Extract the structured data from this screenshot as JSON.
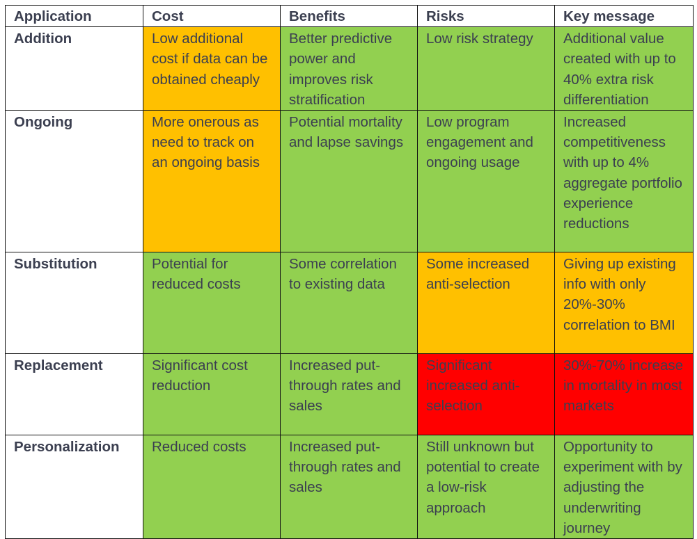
{
  "colors": {
    "green": "#92d050",
    "amber": "#ffc000",
    "red": "#ff0000",
    "text": "#3b3f50",
    "border": "#111111"
  },
  "table": {
    "headers": [
      "Application",
      "Cost",
      "Benefits",
      "Risks",
      "Key message"
    ],
    "rows": [
      {
        "application": "Addition",
        "cost": {
          "text": "Low additional cost if data can be obtained cheaply",
          "rating": "amber"
        },
        "benefits": {
          "text": "Better predictive power and improves risk stratification",
          "rating": "green"
        },
        "risks": {
          "text": "Low risk strategy",
          "rating": "green"
        },
        "key_message": {
          "text": "Additional value created with up to 40% extra risk differentiation",
          "rating": "green"
        }
      },
      {
        "application": "Ongoing",
        "cost": {
          "text": "More onerous as need to track on an ongoing basis",
          "rating": "amber"
        },
        "benefits": {
          "text": "Potential mortality and lapse savings",
          "rating": "green"
        },
        "risks": {
          "text": "Low program engagement and ongoing usage",
          "rating": "green"
        },
        "key_message": {
          "text": "Increased competitiveness with up to 4% aggregate portfolio experience reductions",
          "rating": "green"
        }
      },
      {
        "application": "Substitution",
        "cost": {
          "text": "Potential for reduced costs",
          "rating": "green"
        },
        "benefits": {
          "text": "Some correlation to existing data",
          "rating": "green"
        },
        "risks": {
          "text": "Some increased anti-selection",
          "rating": "amber"
        },
        "key_message": {
          "text": "Giving up existing info with only 20%-30% correlation to BMI",
          "rating": "amber"
        }
      },
      {
        "application": "Replacement",
        "cost": {
          "text": "Significant cost reduction",
          "rating": "green"
        },
        "benefits": {
          "text": "Increased put-through rates and sales",
          "rating": "green"
        },
        "risks": {
          "text": "Significant increased anti-selection",
          "rating": "red"
        },
        "key_message": {
          "text": "30%-70% increase in mortality in most markets",
          "rating": "red"
        }
      },
      {
        "application": "Personalization",
        "cost": {
          "text": "Reduced costs",
          "rating": "green"
        },
        "benefits": {
          "text": "Increased put-through rates and sales",
          "rating": "green"
        },
        "risks": {
          "text": "Still unknown but potential to create a low-risk approach",
          "rating": "green"
        },
        "key_message": {
          "text": "Opportunity to experiment with by adjusting the underwriting journey",
          "rating": "green"
        }
      }
    ]
  }
}
